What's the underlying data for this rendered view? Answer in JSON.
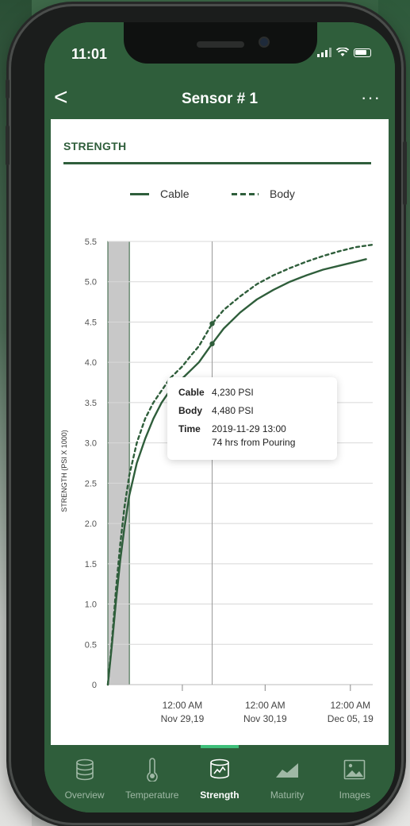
{
  "status": {
    "time": "11:01"
  },
  "nav": {
    "title": "Sensor # 1",
    "back": "<",
    "more": "···"
  },
  "section": {
    "title": "STRENGTH"
  },
  "legend": {
    "cable": "Cable",
    "body": "Body"
  },
  "tooltip": {
    "cable_label": "Cable",
    "cable_value": "4,230 PSI",
    "body_label": "Body",
    "body_value": "4,480 PSI",
    "time_label": "Time",
    "time_value": "2019-11-29  13:00",
    "time_extra": "74 hrs  from Pouring"
  },
  "tabs": [
    {
      "label": "Overview",
      "icon": "database-icon",
      "active": false
    },
    {
      "label": "Temperature",
      "icon": "thermometer-icon",
      "active": false
    },
    {
      "label": "Strength",
      "icon": "strength-icon",
      "active": true
    },
    {
      "label": "Maturity",
      "icon": "area-chart-icon",
      "active": false
    },
    {
      "label": "Images",
      "icon": "image-icon",
      "active": false
    }
  ],
  "colors": {
    "brand": "#2f5e3b",
    "accent": "#3fbf7a",
    "highlight": "#c8c8c8"
  },
  "chart_data": {
    "type": "line",
    "ylabel": "STRENGTH (PSI X 1000)",
    "yticks": [
      "5.5",
      "5.0",
      "4.5",
      "4.0",
      "3.5",
      "3.0",
      "2.5",
      "2.0",
      "1.5",
      "1.0",
      "0.5",
      "0"
    ],
    "ylim": [
      0,
      5.5
    ],
    "xlim_hours": [
      0,
      320
    ],
    "x_ticks": [
      {
        "hours": 90,
        "line1": "12:00 AM",
        "line2": "Nov 29,19"
      },
      {
        "hours": 190,
        "line1": "12:00 AM",
        "line2": "Nov 30,19"
      },
      {
        "hours": 293,
        "line1": "12:00 AM",
        "line2": "Dec 05, 19"
      }
    ],
    "highlight_hours": [
      0,
      26
    ],
    "cursor_hours": 126,
    "grid": true,
    "legend_position": "top",
    "series": [
      {
        "name": "Cable",
        "style": "solid",
        "x": [
          0,
          5,
          10,
          15,
          20,
          26,
          35,
          45,
          55,
          65,
          75,
          90,
          100,
          110,
          126,
          140,
          160,
          180,
          200,
          220,
          240,
          260,
          280,
          300,
          312
        ],
        "y": [
          0,
          0.5,
          1.05,
          1.55,
          1.95,
          2.35,
          2.75,
          3.05,
          3.3,
          3.5,
          3.65,
          3.8,
          3.9,
          4.0,
          4.23,
          4.42,
          4.62,
          4.78,
          4.9,
          5.0,
          5.08,
          5.15,
          5.2,
          5.25,
          5.28
        ]
      },
      {
        "name": "Body",
        "style": "dashed",
        "x": [
          0,
          5,
          10,
          15,
          20,
          26,
          35,
          45,
          55,
          65,
          75,
          90,
          100,
          110,
          126,
          140,
          160,
          180,
          200,
          220,
          240,
          260,
          280,
          300,
          320
        ],
        "y": [
          0,
          0.55,
          1.2,
          1.75,
          2.2,
          2.6,
          3.0,
          3.3,
          3.5,
          3.65,
          3.8,
          3.95,
          4.08,
          4.2,
          4.48,
          4.65,
          4.82,
          4.97,
          5.08,
          5.17,
          5.25,
          5.32,
          5.38,
          5.43,
          5.46
        ]
      }
    ]
  }
}
